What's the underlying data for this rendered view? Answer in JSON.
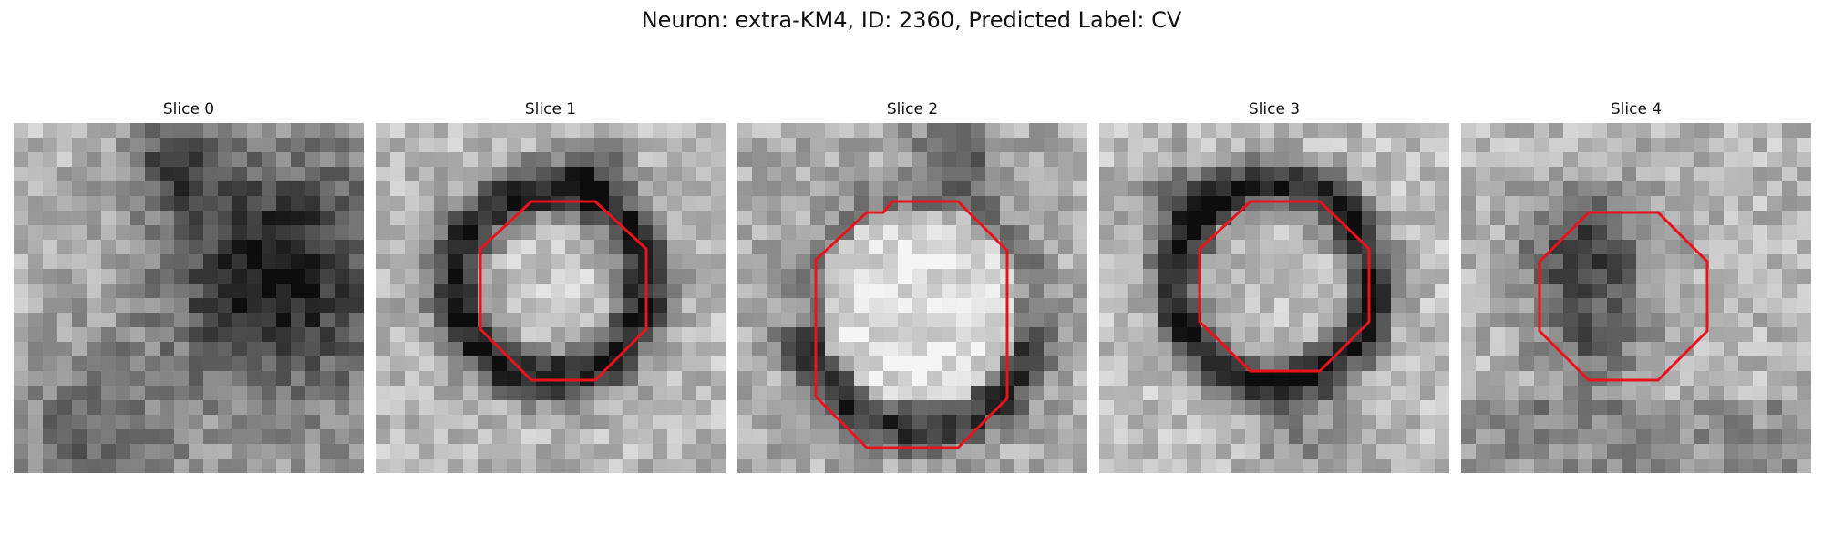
{
  "figure": {
    "title": "Neuron: extra-KM4, ID: 2360, Predicted Label: CV"
  },
  "panels": [
    {
      "title": "Slice 0",
      "overlay": false,
      "outline_color": "#e8141c"
    },
    {
      "title": "Slice 1",
      "overlay": true,
      "outline_color": "#e8141c"
    },
    {
      "title": "Slice 2",
      "overlay": true,
      "outline_color": "#e8141c"
    },
    {
      "title": "Slice 3",
      "overlay": true,
      "outline_color": "#e8141c"
    },
    {
      "title": "Slice 4",
      "overlay": true,
      "outline_color": "#e8141c"
    }
  ]
}
